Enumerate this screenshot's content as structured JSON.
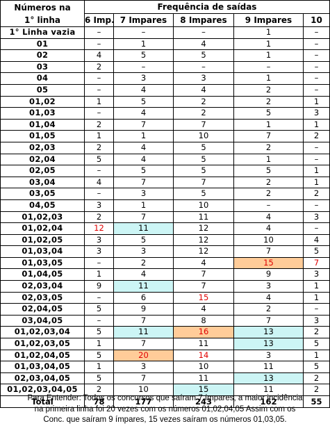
{
  "header": {
    "numbers_title_line1": "Números na",
    "numbers_title_line2": "1° linha",
    "frequency_title": "Frequência de saídas",
    "columns": [
      "6 Imp.",
      "7 Impares",
      "8 Impares",
      "9 Impares",
      "10"
    ]
  },
  "rows": [
    {
      "label": "1° Linha vazia",
      "values": [
        "–",
        "–",
        "–",
        "1",
        "–"
      ]
    },
    {
      "label": "01",
      "values": [
        "–",
        "1",
        "4",
        "1",
        "–"
      ]
    },
    {
      "label": "02",
      "values": [
        "4",
        "5",
        "5",
        "1",
        "–"
      ]
    },
    {
      "label": "03",
      "values": [
        "2",
        "–",
        "–",
        "–",
        "–"
      ]
    },
    {
      "label": "04",
      "values": [
        "–",
        "3",
        "3",
        "1",
        "–"
      ]
    },
    {
      "label": "05",
      "values": [
        "–",
        "4",
        "4",
        "2",
        "–"
      ]
    },
    {
      "label": "01,02",
      "values": [
        "1",
        "5",
        "2",
        "2",
        "1"
      ]
    },
    {
      "label": "01,03",
      "values": [
        "–",
        "4",
        "2",
        "5",
        "3"
      ]
    },
    {
      "label": "01,04",
      "values": [
        "2",
        "7",
        "7",
        "1",
        "1"
      ]
    },
    {
      "label": "01,05",
      "values": [
        "1",
        "1",
        "10",
        "7",
        "2"
      ]
    },
    {
      "label": "02,03",
      "values": [
        "2",
        "4",
        "5",
        "2",
        "–"
      ]
    },
    {
      "label": "02,04",
      "values": [
        "5",
        "4",
        "5",
        "1",
        "–"
      ]
    },
    {
      "label": "02,05",
      "values": [
        "–",
        "5",
        "5",
        "5",
        "1"
      ]
    },
    {
      "label": "03,04",
      "values": [
        "4",
        "7",
        "7",
        "2",
        "1"
      ]
    },
    {
      "label": "03,05",
      "values": [
        "–",
        "3",
        "5",
        "2",
        "2"
      ]
    },
    {
      "label": "04,05",
      "values": [
        "3",
        "1",
        "10",
        "–",
        "–"
      ]
    },
    {
      "label": "01,02,03",
      "values": [
        "2",
        "7",
        "11",
        "4",
        "3"
      ]
    },
    {
      "label": "01,02,04",
      "values": [
        "12",
        "11",
        "12",
        "4",
        "–"
      ]
    },
    {
      "label": "01,02,05",
      "values": [
        "3",
        "5",
        "12",
        "10",
        "4"
      ]
    },
    {
      "label": "01,03,04",
      "values": [
        "3",
        "3",
        "12",
        "7",
        "5"
      ]
    },
    {
      "label": "01,03,05",
      "values": [
        "–",
        "2",
        "4",
        "15",
        "7"
      ]
    },
    {
      "label": "01,04,05",
      "values": [
        "1",
        "4",
        "7",
        "9",
        "3"
      ]
    },
    {
      "label": "02,03,04",
      "values": [
        "9",
        "11",
        "7",
        "3",
        "1"
      ]
    },
    {
      "label": "02,03,05",
      "values": [
        "–",
        "6",
        "15",
        "4",
        "1"
      ]
    },
    {
      "label": "02,04,05",
      "values": [
        "5",
        "9",
        "4",
        "2",
        "–"
      ]
    },
    {
      "label": "03,04,05",
      "values": [
        "–",
        "7",
        "8",
        "7",
        "3"
      ]
    },
    {
      "label": "01,02,03,04",
      "values": [
        "5",
        "11",
        "16",
        "13",
        "2"
      ]
    },
    {
      "label": "01,02,03,05",
      "values": [
        "1",
        "7",
        "11",
        "13",
        "5"
      ]
    },
    {
      "label": "01,02,04,05",
      "values": [
        "5",
        "20",
        "14",
        "3",
        "1"
      ]
    },
    {
      "label": "01,03,04,05",
      "values": [
        "1",
        "3",
        "10",
        "11",
        "5"
      ]
    },
    {
      "label": "02,03,04,05",
      "values": [
        "5",
        "7",
        "11",
        "13",
        "2"
      ]
    },
    {
      "label": "01,02,03,04,05",
      "values": [
        "2",
        "10",
        "15",
        "11",
        "2"
      ]
    }
  ],
  "highlights": [
    {
      "row": 17,
      "col": 0,
      "bg": "none",
      "red": true
    },
    {
      "row": 17,
      "col": 1,
      "bg": "cyan",
      "red": false
    },
    {
      "row": 20,
      "col": 3,
      "bg": "orange",
      "red": true
    },
    {
      "row": 20,
      "col": 4,
      "bg": "none",
      "red": true
    },
    {
      "row": 22,
      "col": 1,
      "bg": "cyan",
      "red": false
    },
    {
      "row": 23,
      "col": 2,
      "bg": "none",
      "red": true
    },
    {
      "row": 26,
      "col": 1,
      "bg": "cyan",
      "red": false
    },
    {
      "row": 26,
      "col": 2,
      "bg": "orange",
      "red": true
    },
    {
      "row": 26,
      "col": 3,
      "bg": "cyan",
      "red": false
    },
    {
      "row": 27,
      "col": 3,
      "bg": "cyan",
      "red": false
    },
    {
      "row": 28,
      "col": 1,
      "bg": "orange",
      "red": true
    },
    {
      "row": 28,
      "col": 2,
      "bg": "none",
      "red": true
    },
    {
      "row": 30,
      "col": 3,
      "bg": "cyan",
      "red": false
    },
    {
      "row": 31,
      "col": 2,
      "bg": "cyan",
      "red": false
    }
  ],
  "colors": {
    "cyan": "#ccf5f5",
    "orange": "#ffcc99",
    "red": "#e00000"
  },
  "total": {
    "label": "Total",
    "values": [
      "78",
      "177",
      "243",
      "162",
      "55"
    ]
  },
  "note": {
    "line1": "Para Entender: Todos os concursos que saíram 7 ímpares, a maior incidência",
    "line2": "na primeira linha foi 20 vezes com os números 01,02,04,05 Assim com os",
    "line3": "Conc. que saíram 9 ímpares, 15 vezes saíram os números 01,03,05."
  }
}
